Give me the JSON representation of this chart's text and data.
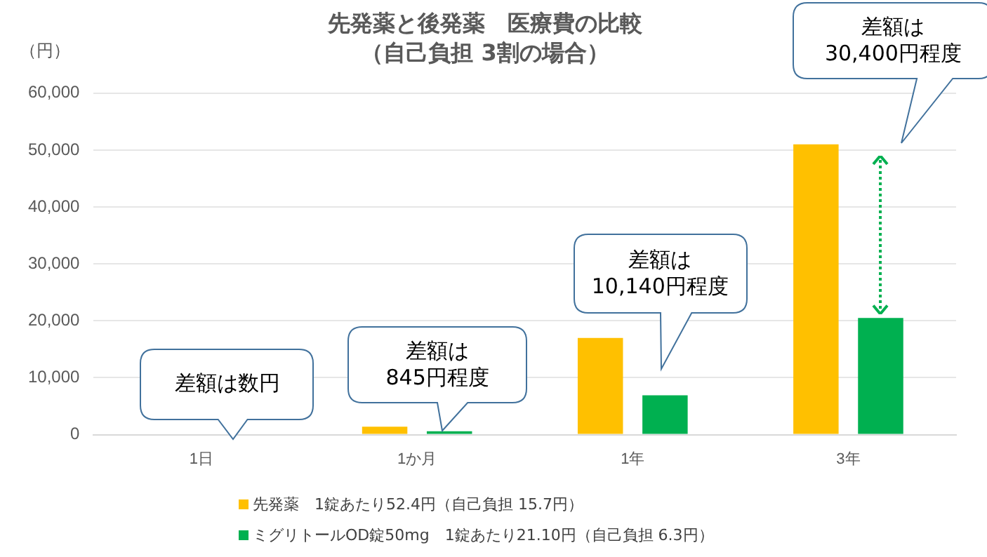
{
  "chart_data": {
    "type": "bar",
    "title": "先発薬と後発薬　医療費の比較",
    "subtitle": "（自己負担 3割の場合）",
    "ylabel": "（円）",
    "categories": [
      "1日",
      "1か月",
      "1年",
      "3年"
    ],
    "series": [
      {
        "name": "先発薬　1錠あたり52.4円（自己負担 15.7円）",
        "color": "#ffc000",
        "values": [
          0,
          1400,
          17000,
          51000
        ]
      },
      {
        "name": "ミグリトールOD錠50mg　1錠あたり21.10円（自己負担 6.3円）",
        "color": "#00b050",
        "values": [
          0,
          600,
          6900,
          20500
        ]
      }
    ],
    "ylim": [
      0,
      60000
    ],
    "yticks": [
      0,
      {
        "value": 10000,
        "label": "10,000"
      },
      {
        "value": 20000,
        "label": "20,000"
      },
      {
        "value": 30000,
        "label": "30,000"
      },
      {
        "value": 40000,
        "label": "40,000"
      },
      {
        "value": 50000,
        "label": "50,000"
      },
      {
        "value": 60000,
        "label": "60,000"
      }
    ],
    "grid": "y",
    "legend": "bottom",
    "annotations": [
      "差額は数円",
      "差額は\n845円程度",
      "差額は\n10,140円程度",
      "差額は\n30,400円程度"
    ]
  }
}
